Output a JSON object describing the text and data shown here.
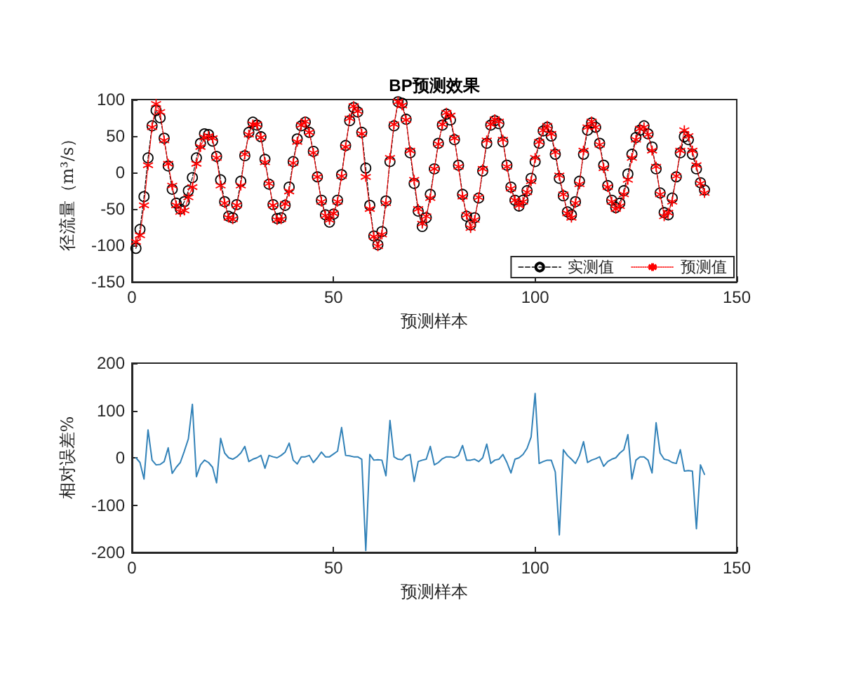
{
  "chart_data": [
    {
      "type": "line",
      "title": "BP预测效果",
      "xlabel": "预测样本",
      "ylabel": "径流量（m³/s）",
      "legend": "bottom right",
      "x": [
        1,
        2,
        3,
        4,
        5,
        6,
        7,
        8,
        9,
        10,
        11,
        12,
        13,
        14,
        15,
        16,
        17,
        18,
        19,
        20,
        21,
        22,
        23,
        24,
        25,
        26,
        27,
        28,
        29,
        30,
        31,
        32,
        33,
        34,
        35,
        36,
        37,
        38,
        39,
        40,
        41,
        42,
        43,
        44,
        45,
        46,
        47,
        48,
        49,
        50,
        51,
        52,
        53,
        54,
        55,
        56,
        57,
        58,
        59,
        60,
        61,
        62,
        63,
        64,
        65,
        66,
        67,
        68,
        69,
        70,
        71,
        72,
        73,
        74,
        75,
        76,
        77,
        78,
        79,
        80,
        81,
        82,
        83,
        84,
        85,
        86,
        87,
        88,
        89,
        90,
        91,
        92,
        93,
        94,
        95,
        96,
        97,
        98,
        99,
        100,
        101,
        102,
        103,
        104,
        105,
        106,
        107,
        108,
        109,
        110,
        111,
        112,
        113,
        114,
        115,
        116,
        117,
        118,
        119,
        120,
        121,
        122,
        123,
        124,
        125,
        126,
        127,
        128,
        129,
        130,
        131,
        132,
        133,
        134,
        135,
        136,
        137,
        138,
        139,
        140,
        141,
        142
      ],
      "series": [
        {
          "name": "实测值",
          "color": "#000000",
          "marker": "circle",
          "line_style": "dashed",
          "values": [
            -104,
            -78,
            -33,
            20,
            64,
            85,
            75,
            47,
            9,
            -23,
            -42,
            -50,
            -40,
            -25,
            -7,
            20,
            40,
            53,
            52,
            43,
            22,
            -10,
            -40,
            -60,
            -62,
            -44,
            -12,
            23,
            55,
            69,
            65,
            49,
            18,
            -16,
            -44,
            -63,
            -62,
            -45,
            -20,
            15,
            46,
            64,
            69,
            55,
            29,
            -6,
            -38,
            -58,
            -68,
            -57,
            -38,
            -3,
            37,
            71,
            89,
            83,
            55,
            6,
            -45,
            -87,
            -99,
            -81,
            -39,
            15,
            64,
            97,
            95,
            73,
            27,
            -15,
            -53,
            -74,
            -62,
            -30,
            5,
            40,
            65,
            80,
            72,
            45,
            10,
            -30,
            -60,
            -72,
            -62,
            -35,
            2,
            40,
            65,
            71,
            67,
            42,
            10,
            -20,
            -38,
            -46,
            -38,
            -25,
            -8,
            15,
            40,
            57,
            62,
            50,
            25,
            -8,
            -32,
            -54,
            -58,
            -40,
            -12,
            25,
            58,
            68,
            62,
            40,
            10,
            -18,
            -38,
            -48,
            -42,
            -25,
            -2,
            25,
            48,
            58,
            64,
            53,
            35,
            5,
            -28,
            -55,
            -58,
            -35,
            -6,
            27,
            49,
            45,
            25,
            5,
            -14,
            -24
          ]
        },
        {
          "name": "预测值",
          "color": "#ff0000",
          "marker": "cross",
          "line_style": "dotted",
          "values": [
            -95,
            -86,
            -45,
            10,
            62,
            94,
            83,
            44,
            12,
            -18,
            -45,
            -54,
            -52,
            -34,
            -20,
            12,
            35,
            48,
            50,
            47,
            20,
            -18,
            -42,
            -62,
            -64,
            -45,
            -18,
            25,
            52,
            66,
            66,
            48,
            14,
            -15,
            -45,
            -65,
            -64,
            -43,
            -26,
            13,
            42,
            65,
            70,
            55,
            27,
            -6,
            -40,
            -59,
            -65,
            -56,
            -40,
            -5,
            35,
            74,
            91,
            84,
            53,
            -6,
            -50,
            -88,
            -101,
            -85,
            -42,
            20,
            66,
            97,
            92,
            72,
            30,
            -10,
            -50,
            -70,
            -60,
            -35,
            5,
            39,
            66,
            82,
            78,
            47,
            8,
            -33,
            -58,
            -76,
            -65,
            -34,
            5,
            44,
            66,
            73,
            70,
            45,
            8,
            -22,
            -38,
            -45,
            -40,
            -27,
            -12,
            20,
            42,
            58,
            64,
            53,
            28,
            -4,
            -30,
            -56,
            -62,
            -42,
            -16,
            30,
            62,
            70,
            62,
            38,
            6,
            -20,
            -40,
            -50,
            -46,
            -30,
            -10,
            20,
            45,
            60,
            62,
            52,
            30,
            8,
            -30,
            -60,
            -55,
            -40,
            -5,
            30,
            58,
            50,
            30,
            10,
            -15,
            -28
          ]
        }
      ],
      "xlim": [
        0,
        150
      ],
      "xticks": [
        0,
        50,
        100,
        150
      ],
      "ylim": [
        -150,
        100
      ],
      "yticks": [
        -150,
        -100,
        -50,
        0,
        50,
        100
      ]
    },
    {
      "type": "line",
      "xlabel": "预测样本",
      "ylabel": "相对误差%",
      "marker": "none",
      "x": [
        1,
        2,
        3,
        4,
        5,
        6,
        7,
        8,
        9,
        10,
        11,
        12,
        13,
        14,
        15,
        16,
        17,
        18,
        19,
        20,
        21,
        22,
        23,
        24,
        25,
        26,
        27,
        28,
        29,
        30,
        31,
        32,
        33,
        34,
        35,
        36,
        37,
        38,
        39,
        40,
        41,
        42,
        43,
        44,
        45,
        46,
        47,
        48,
        49,
        50,
        51,
        52,
        53,
        54,
        55,
        56,
        57,
        58,
        59,
        60,
        61,
        62,
        63,
        64,
        65,
        66,
        67,
        68,
        69,
        70,
        71,
        72,
        73,
        74,
        75,
        76,
        77,
        78,
        79,
        80,
        81,
        82,
        83,
        84,
        85,
        86,
        87,
        88,
        89,
        90,
        91,
        92,
        93,
        94,
        95,
        96,
        97,
        98,
        99,
        100,
        101,
        102,
        103,
        104,
        105,
        106,
        107,
        108,
        109,
        110,
        111,
        112,
        113,
        114,
        115,
        116,
        117,
        118,
        119,
        120,
        121,
        122,
        123,
        124,
        125,
        126,
        127,
        128,
        129,
        130,
        131,
        132,
        133,
        134,
        135,
        136,
        137,
        138,
        139,
        140,
        141,
        142
      ],
      "series": [
        {
          "color": "#3282b8",
          "line_style": "solid",
          "values": [
            0,
            -10,
            -45,
            59,
            -5,
            -15,
            -14,
            -8,
            21,
            -33,
            -20,
            -10,
            14,
            40,
            113,
            -40,
            -15,
            -5,
            -10,
            -20,
            -53,
            41,
            10,
            0,
            -3,
            2,
            10,
            24,
            -8,
            -3,
            0,
            5,
            -22,
            5,
            2,
            0,
            5,
            12,
            31,
            -5,
            -13,
            2,
            2,
            5,
            -10,
            0,
            12,
            2,
            2,
            8,
            14,
            64,
            5,
            4,
            2,
            2,
            -3,
            -196,
            7,
            -5,
            -4,
            -5,
            -38,
            79,
            2,
            -3,
            -4,
            4,
            7,
            -50,
            -8,
            -5,
            -3,
            24,
            -15,
            -10,
            -2,
            2,
            2,
            0,
            5,
            26,
            -5,
            -5,
            -3,
            -8,
            0,
            29,
            -12,
            -5,
            -3,
            7,
            -10,
            -32,
            -3,
            0,
            7,
            20,
            44,
            136,
            -12,
            -8,
            -5,
            -5,
            -30,
            -163,
            17,
            5,
            -3,
            -12,
            5,
            34,
            -10,
            -5,
            -2,
            2,
            -18,
            -8,
            -3,
            0,
            10,
            17,
            49,
            -45,
            -5,
            2,
            2,
            -5,
            -32,
            74,
            10,
            -3,
            -5,
            -10,
            -12,
            17,
            -28,
            -27,
            -28,
            -150,
            -15,
            -35
          ]
        }
      ],
      "xlim": [
        0,
        150
      ],
      "xticks": [
        0,
        50,
        100,
        150
      ],
      "ylim": [
        -200,
        200
      ],
      "yticks": [
        -200,
        -100,
        0,
        100,
        200
      ]
    }
  ]
}
